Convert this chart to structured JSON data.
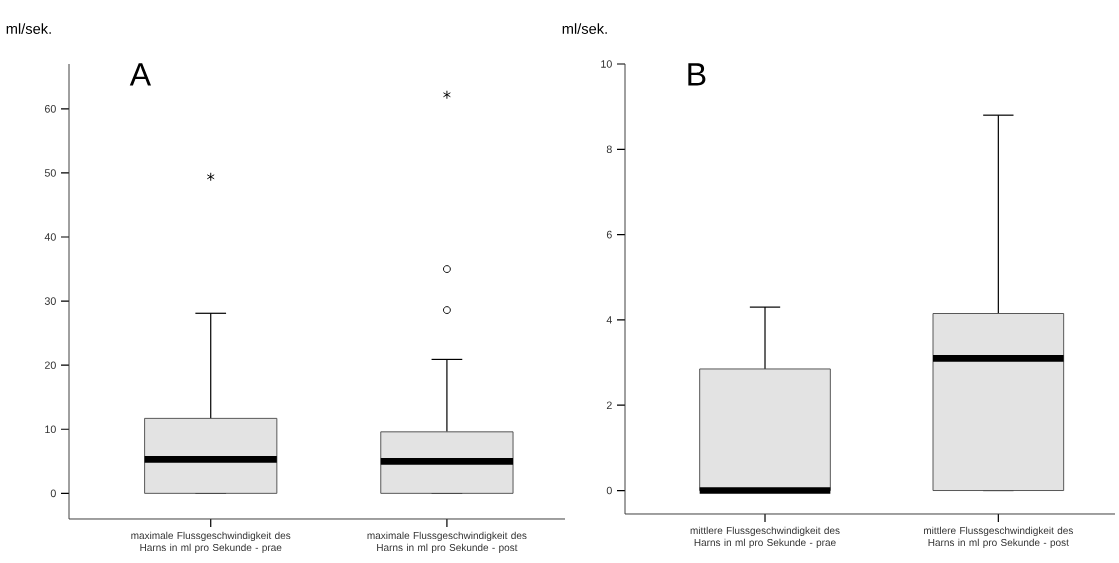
{
  "chart_data": [
    {
      "type": "box",
      "title": "A",
      "ylabel": "ml/sek.",
      "categories": [
        "maximale Flussgeschwindigkeit des Harns in ml pro Sekunde - prae",
        "maximale Flussgeschwindigkeit des Harns in ml pro Sekunde - post"
      ],
      "ylim": [
        -4,
        67
      ],
      "yticks": [
        0,
        10,
        20,
        30,
        40,
        50,
        60
      ],
      "series": [
        {
          "color": "#e3e3e3",
          "boxes": [
            {
              "low": 0,
              "q1": 0,
              "median": 5.3,
              "q3": 11.7,
              "high": 28.1,
              "outliers": [
                49.4
              ]
            },
            {
              "low": 0,
              "q1": 0,
              "median": 5.0,
              "q3": 9.6,
              "high": 20.9,
              "outliers": [
                28.6,
                35.0,
                62.2
              ]
            }
          ]
        }
      ]
    },
    {
      "type": "box",
      "title": "B",
      "ylabel": "ml/sek.",
      "categories": [
        "mittlere Flussgeschwindigkeit des Harns in ml pro Sekunde - prae",
        "mittlere Flussgeschwindigkeit des Harns in ml pro Sekunde - post"
      ],
      "ylim": [
        -0.55,
        10
      ],
      "yticks": [
        0,
        2,
        4,
        6,
        8,
        10
      ],
      "series": [
        {
          "color": "#e3e3e3",
          "boxes": [
            {
              "low": 0,
              "q1": 0,
              "median": 0,
              "q3": 2.85,
              "high": 4.3
            },
            {
              "low": 0,
              "q1": 0,
              "median": 3.1,
              "q3": 4.15,
              "high": 8.8
            }
          ]
        }
      ]
    }
  ]
}
